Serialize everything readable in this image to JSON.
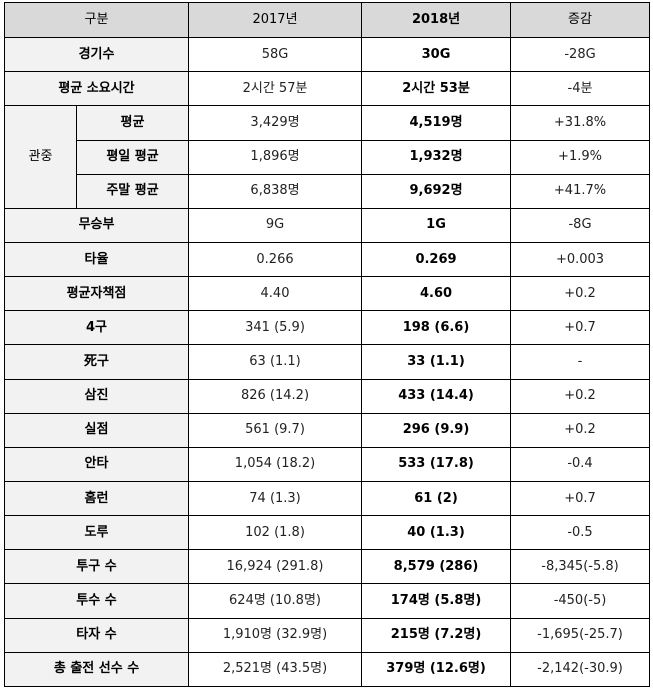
{
  "table": {
    "headers": {
      "category": "구분",
      "y2017": "2017년",
      "y2018": "2018년",
      "change": "증감"
    },
    "rows_before": [
      {
        "label": "경기수",
        "v2017": "58G",
        "v2018": "30G",
        "change": "-28G"
      },
      {
        "label": "평균 소요시간",
        "v2017": "2시간 57분",
        "v2018": "2시간 53분",
        "change": "-4분"
      }
    ],
    "audience": {
      "group_label": "관중",
      "rows": [
        {
          "label": "평균",
          "v2017": "3,429명",
          "v2018": "4,519명",
          "change": "+31.8%"
        },
        {
          "label": "평일 평균",
          "v2017": "1,896명",
          "v2018": "1,932명",
          "change": "+1.9%"
        },
        {
          "label": "주말 평균",
          "v2017": "6,838명",
          "v2018": "9,692명",
          "change": "+41.7%"
        }
      ]
    },
    "rows_after": [
      {
        "label": "무승부",
        "v2017": "9G",
        "v2018": "1G",
        "change": "-8G"
      },
      {
        "label": "타율",
        "v2017": "0.266",
        "v2018": "0.269",
        "change": "+0.003"
      },
      {
        "label": "평균자책점",
        "v2017": "4.40",
        "v2018": "4.60",
        "change": "+0.2"
      },
      {
        "label": "4구",
        "v2017": "341 (5.9)",
        "v2018": "198 (6.6)",
        "change": "+0.7"
      },
      {
        "label": "死구",
        "v2017": "63 (1.1)",
        "v2018": "33 (1.1)",
        "change": "-"
      },
      {
        "label": "삼진",
        "v2017": "826 (14.2)",
        "v2018": "433 (14.4)",
        "change": "+0.2"
      },
      {
        "label": "실점",
        "v2017": "561 (9.7)",
        "v2018": "296 (9.9)",
        "change": "+0.2"
      },
      {
        "label": "안타",
        "v2017": "1,054 (18.2)",
        "v2018": "533 (17.8)",
        "change": "-0.4"
      },
      {
        "label": "홈런",
        "v2017": "74 (1.3)",
        "v2018": "61 (2)",
        "change": "+0.7"
      },
      {
        "label": "도루",
        "v2017": "102 (1.8)",
        "v2018": "40 (1.3)",
        "change": "-0.5"
      },
      {
        "label": "투구 수",
        "v2017": "16,924 (291.8)",
        "v2018": "8,579 (286)",
        "change": "-8,345(-5.8)"
      },
      {
        "label": "투수 수",
        "v2017": "624명 (10.8명)",
        "v2018": "174명 (5.8명)",
        "change": "-450(-5)"
      },
      {
        "label": "타자 수",
        "v2017": "1,910명 (32.9명)",
        "v2018": "215명 (7.2명)",
        "change": "-1,695(-25.7)"
      },
      {
        "label": "총 출전 선수 수",
        "v2017": "2,521명 (43.5명)",
        "v2018": "379명 (12.6명)",
        "change": "-2,142(-30.9)"
      }
    ]
  }
}
